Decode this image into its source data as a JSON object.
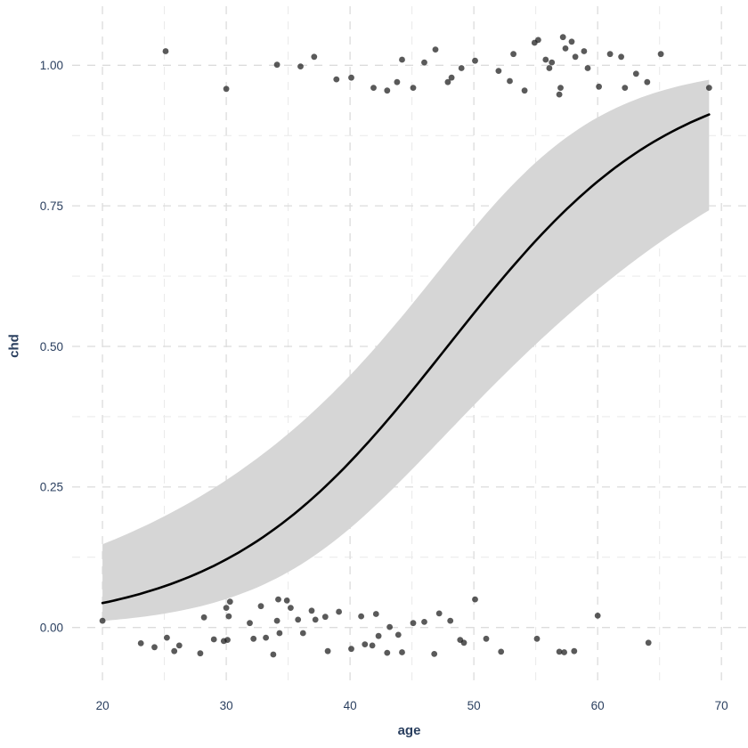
{
  "chart_data": {
    "type": "scatter",
    "title": "",
    "xlabel": "age",
    "ylabel": "chd",
    "xlim": [
      17.55,
      72.0
    ],
    "ylim": [
      -0.105,
      1.105
    ],
    "x_ticks": [
      20,
      30,
      40,
      50,
      60,
      70
    ],
    "x_tick_labels": [
      "20",
      "30",
      "40",
      "50",
      "60",
      "70"
    ],
    "x_minor": [
      25,
      35,
      45,
      55,
      65
    ],
    "y_ticks": [
      0,
      0.25,
      0.5,
      0.75,
      1
    ],
    "y_tick_labels": [
      "0.00",
      "0.25",
      "0.50",
      "0.75",
      "1.00"
    ],
    "y_minor": [
      0.125,
      0.375,
      0.625,
      0.875
    ],
    "grid": "dashed-major-and-minor",
    "legend": "none",
    "points": [
      [
        20.0,
        0.012
      ],
      [
        23.1,
        -0.028
      ],
      [
        24.2,
        -0.035
      ],
      [
        25.2,
        -0.018
      ],
      [
        25.8,
        -0.042
      ],
      [
        26.2,
        -0.032
      ],
      [
        27.9,
        -0.046
      ],
      [
        28.2,
        0.018
      ],
      [
        29.0,
        -0.021
      ],
      [
        29.8,
        -0.024
      ],
      [
        30.1,
        -0.022
      ],
      [
        30.0,
        0.035
      ],
      [
        30.2,
        0.02
      ],
      [
        30.3,
        0.046
      ],
      [
        31.9,
        0.008
      ],
      [
        32.2,
        -0.02
      ],
      [
        32.8,
        0.038
      ],
      [
        33.2,
        -0.018
      ],
      [
        33.8,
        -0.048
      ],
      [
        34.1,
        0.012
      ],
      [
        34.2,
        0.05
      ],
      [
        34.3,
        -0.01
      ],
      [
        34.9,
        0.048
      ],
      [
        35.2,
        0.035
      ],
      [
        35.8,
        0.014
      ],
      [
        36.2,
        -0.01
      ],
      [
        36.9,
        0.03
      ],
      [
        37.2,
        0.014
      ],
      [
        38.0,
        0.019
      ],
      [
        38.2,
        -0.042
      ],
      [
        39.1,
        0.028
      ],
      [
        40.1,
        -0.038
      ],
      [
        40.9,
        0.02
      ],
      [
        41.2,
        -0.03
      ],
      [
        41.8,
        -0.032
      ],
      [
        42.1,
        0.024
      ],
      [
        42.3,
        -0.015
      ],
      [
        43.0,
        -0.045
      ],
      [
        43.2,
        0.001
      ],
      [
        43.9,
        -0.013
      ],
      [
        44.2,
        -0.044
      ],
      [
        45.1,
        0.008
      ],
      [
        46.0,
        0.01
      ],
      [
        46.8,
        -0.047
      ],
      [
        47.2,
        0.025
      ],
      [
        48.1,
        0.012
      ],
      [
        48.9,
        -0.022
      ],
      [
        49.2,
        -0.027
      ],
      [
        50.1,
        0.05
      ],
      [
        51.0,
        -0.02
      ],
      [
        52.2,
        -0.043
      ],
      [
        55.1,
        -0.02
      ],
      [
        56.9,
        -0.043
      ],
      [
        57.3,
        -0.044
      ],
      [
        58.1,
        -0.042
      ],
      [
        60.0,
        0.021
      ],
      [
        64.1,
        -0.027
      ],
      [
        25.1,
        1.025
      ],
      [
        30.0,
        0.958
      ],
      [
        34.1,
        1.001
      ],
      [
        36.0,
        0.998
      ],
      [
        37.1,
        1.015
      ],
      [
        38.9,
        0.975
      ],
      [
        40.1,
        0.978
      ],
      [
        41.9,
        0.96
      ],
      [
        43.0,
        0.955
      ],
      [
        43.8,
        0.97
      ],
      [
        44.2,
        1.01
      ],
      [
        45.1,
        0.96
      ],
      [
        46.0,
        1.005
      ],
      [
        46.9,
        1.028
      ],
      [
        47.9,
        0.97
      ],
      [
        48.2,
        0.978
      ],
      [
        49.0,
        0.995
      ],
      [
        50.1,
        1.008
      ],
      [
        52.0,
        0.99
      ],
      [
        52.9,
        0.972
      ],
      [
        53.2,
        1.02
      ],
      [
        54.1,
        0.955
      ],
      [
        54.9,
        1.04
      ],
      [
        55.2,
        1.045
      ],
      [
        55.8,
        1.01
      ],
      [
        56.1,
        0.995
      ],
      [
        56.3,
        1.005
      ],
      [
        56.9,
        0.948
      ],
      [
        57.0,
        0.96
      ],
      [
        57.2,
        1.05
      ],
      [
        57.4,
        1.03
      ],
      [
        57.9,
        1.042
      ],
      [
        58.2,
        1.015
      ],
      [
        58.9,
        1.025
      ],
      [
        59.2,
        0.995
      ],
      [
        60.1,
        0.962
      ],
      [
        61.0,
        1.02
      ],
      [
        61.9,
        1.015
      ],
      [
        62.2,
        0.96
      ],
      [
        63.1,
        0.985
      ],
      [
        64.0,
        0.97
      ],
      [
        65.1,
        1.02
      ],
      [
        69.0,
        0.96
      ]
    ],
    "fit": {
      "model": "logistic",
      "intercept": -5.309,
      "slope": 0.1109,
      "se_var_intercept": 1.2853,
      "se_var_slope": 0.000581,
      "se_cov": -0.02624,
      "ci_z": 1.96,
      "x_range": [
        20,
        69
      ]
    },
    "colors": {
      "point": "#1a1a1a",
      "line": "#000000",
      "band": "#d6d6d6",
      "grid_major": "#dcdcdc",
      "grid_minor": "#e9e9e9",
      "axis_text": "#2a3f5f",
      "axis_title": "#2a3f5f",
      "background": "#ffffff"
    }
  }
}
